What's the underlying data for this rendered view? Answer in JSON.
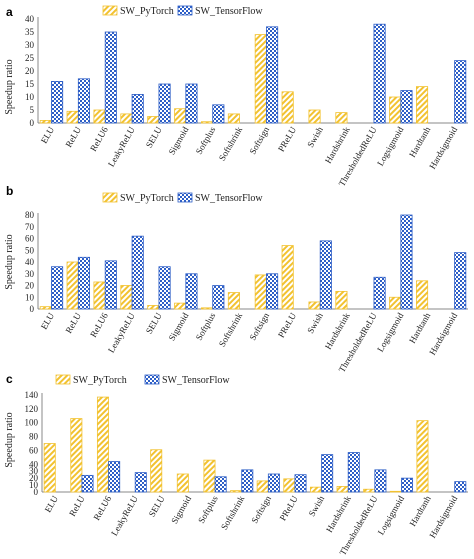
{
  "colors": {
    "pytorch": "#F2C230",
    "tensorflow": "#2E5FC7",
    "axis": "#888888"
  },
  "chart_data": [
    {
      "type": "bar",
      "panel_label": "a",
      "ylabel": "Speedup ratio",
      "ylim": [
        0,
        40
      ],
      "yticks": [
        0,
        5,
        10,
        15,
        20,
        25,
        30,
        35,
        40
      ],
      "legend_position": "top-left",
      "categories": [
        "ELU",
        "ReLU",
        "ReLU6",
        "LeakyReLU",
        "SELU",
        "Sigmoid",
        "Softplus",
        "Softshrink",
        "Softsign",
        "PReLU",
        "Swish",
        "Hardshrink",
        "ThresholdedReLU",
        "Logsigmoid",
        "Hardtanh",
        "Hardsigmoid"
      ],
      "series": [
        {
          "name": "SW_PyTorch",
          "values": [
            1,
            4.5,
            5,
            3.5,
            2.5,
            5.5,
            0.5,
            3.5,
            34,
            12,
            5,
            4,
            0,
            10,
            14,
            0
          ]
        },
        {
          "name": "SW_TensorFlow",
          "values": [
            16,
            17,
            35,
            11,
            15,
            15,
            7,
            0,
            37,
            0,
            0,
            0,
            38,
            12.5,
            0,
            24
          ]
        }
      ]
    },
    {
      "type": "bar",
      "panel_label": "b",
      "ylabel": "Speedup ratio",
      "ylim": [
        0,
        80
      ],
      "yticks": [
        0,
        10,
        20,
        30,
        40,
        50,
        60,
        70,
        80
      ],
      "legend_position": "top-left",
      "categories": [
        "ELU",
        "ReLU",
        "ReLU6",
        "LeakyReLU",
        "SELU",
        "Sigmoid",
        "Softplus",
        "Softshrink",
        "Softsign",
        "PReLU",
        "Swish",
        "Hardshrink",
        "ThresholdedReLU",
        "Logsigmoid",
        "Hardtanh",
        "Hardsigmoid"
      ],
      "series": [
        {
          "name": "SW_PyTorch",
          "values": [
            2,
            40,
            23,
            20,
            3,
            5,
            1,
            14,
            29,
            54,
            6,
            15,
            0,
            10,
            24,
            0
          ]
        },
        {
          "name": "SW_TensorFlow",
          "values": [
            36,
            44,
            41,
            62,
            36,
            30,
            20,
            0,
            30,
            0,
            58,
            0,
            27,
            83,
            0,
            48
          ]
        }
      ]
    },
    {
      "type": "bar",
      "panel_label": "c",
      "ylabel": "Speedup ratio",
      "ylim": [
        0,
        140
      ],
      "yticks": [
        0,
        10,
        20,
        30,
        40,
        60,
        80,
        100,
        120,
        140
      ],
      "legend_position": "top-left",
      "categories": [
        "ELU",
        "ReLU",
        "ReLU6",
        "LeakyReLU",
        "SELU",
        "Sigmoid",
        "Softplus",
        "Softshrink",
        "Softsign",
        "PReLU",
        "Swish",
        "Hardshrink",
        "ThresholdedReLU",
        "Logsigmoid",
        "Hardtanh",
        "Hardsigmoid"
      ],
      "series": [
        {
          "name": "SW_PyTorch",
          "values": [
            70,
            106,
            137,
            0,
            61,
            26,
            46,
            2,
            16,
            19,
            7,
            8,
            4,
            1,
            103,
            0
          ]
        },
        {
          "name": "SW_TensorFlow",
          "values": [
            0,
            24,
            44,
            28,
            0,
            0,
            22,
            32,
            26,
            25,
            54,
            57,
            32,
            20,
            0,
            15
          ]
        }
      ]
    }
  ]
}
